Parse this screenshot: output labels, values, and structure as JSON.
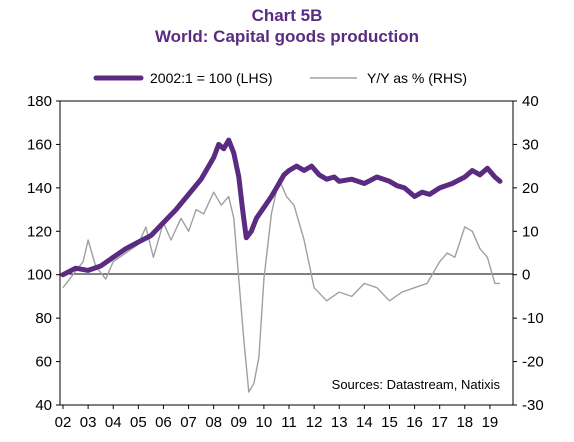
{
  "chart_data": {
    "type": "line",
    "title": "Chart 5B",
    "subtitle": "World: Capital goods production",
    "source": "Sources:  Datastream,  Natixis",
    "legend_position": "top",
    "x_tick_labels": [
      "02",
      "03",
      "04",
      "05",
      "06",
      "07",
      "08",
      "09",
      "10",
      "11",
      "12",
      "13",
      "14",
      "15",
      "16",
      "17",
      "18",
      "19"
    ],
    "left_axis": {
      "ylim": [
        40,
        180
      ],
      "ticks": [
        40,
        60,
        80,
        100,
        120,
        140,
        160,
        180
      ]
    },
    "right_axis": {
      "ylim": [
        -30,
        40
      ],
      "ticks": [
        -30,
        -20,
        -10,
        0,
        10,
        20,
        30,
        40
      ]
    },
    "series": [
      {
        "name": "2002:1 = 100 (LHS)",
        "axis": "left",
        "color": "#5b2b82",
        "x": [
          2002.0,
          2002.5,
          2003.0,
          2003.5,
          2004.0,
          2004.5,
          2005.0,
          2005.5,
          2006.0,
          2006.5,
          2007.0,
          2007.5,
          2007.8,
          2008.0,
          2008.2,
          2008.4,
          2008.6,
          2008.8,
          2009.0,
          2009.15,
          2009.3,
          2009.5,
          2009.7,
          2010.0,
          2010.3,
          2010.6,
          2010.8,
          2011.0,
          2011.3,
          2011.6,
          2011.9,
          2012.2,
          2012.5,
          2012.8,
          2013.0,
          2013.5,
          2014.0,
          2014.5,
          2015.0,
          2015.3,
          2015.6,
          2016.0,
          2016.3,
          2016.6,
          2017.0,
          2017.5,
          2018.0,
          2018.3,
          2018.6,
          2018.9,
          2019.2,
          2019.4
        ],
        "values": [
          100,
          103,
          102,
          104,
          108,
          112,
          115,
          118,
          124,
          130,
          137,
          144,
          150,
          154,
          160,
          158,
          162,
          156,
          145,
          130,
          117,
          120,
          126,
          131,
          136,
          142,
          146,
          148,
          150,
          148,
          150,
          146,
          144,
          145,
          143,
          144,
          142,
          145,
          143,
          141,
          140,
          136,
          138,
          137,
          140,
          142,
          145,
          148,
          146,
          149,
          145,
          143
        ]
      },
      {
        "name": "Y/Y as % (RHS)",
        "axis": "right",
        "color": "#a0a0a0",
        "x": [
          2002.0,
          2002.4,
          2002.8,
          2003.0,
          2003.3,
          2003.7,
          2004.0,
          2004.5,
          2005.0,
          2005.3,
          2005.6,
          2006.0,
          2006.3,
          2006.7,
          2007.0,
          2007.3,
          2007.6,
          2008.0,
          2008.3,
          2008.6,
          2008.8,
          2009.0,
          2009.2,
          2009.4,
          2009.6,
          2009.8,
          2010.0,
          2010.3,
          2010.6,
          2010.9,
          2011.2,
          2011.6,
          2012.0,
          2012.5,
          2013.0,
          2013.5,
          2014.0,
          2014.5,
          2015.0,
          2015.5,
          2016.0,
          2016.5,
          2017.0,
          2017.3,
          2017.6,
          2018.0,
          2018.3,
          2018.6,
          2018.9,
          2019.2,
          2019.4
        ],
        "values": [
          -3,
          0,
          3,
          8,
          2,
          -1,
          3,
          5,
          7,
          11,
          4,
          12,
          8,
          13,
          10,
          15,
          14,
          19,
          16,
          18,
          13,
          -1,
          -15,
          -27,
          -25,
          -19,
          -1,
          14,
          22,
          18,
          16,
          8,
          -3,
          -6,
          -4,
          -5,
          -2,
          -3,
          -6,
          -4,
          -3,
          -2,
          3,
          5,
          4,
          11,
          10,
          6,
          4,
          -2,
          -2
        ]
      }
    ]
  }
}
